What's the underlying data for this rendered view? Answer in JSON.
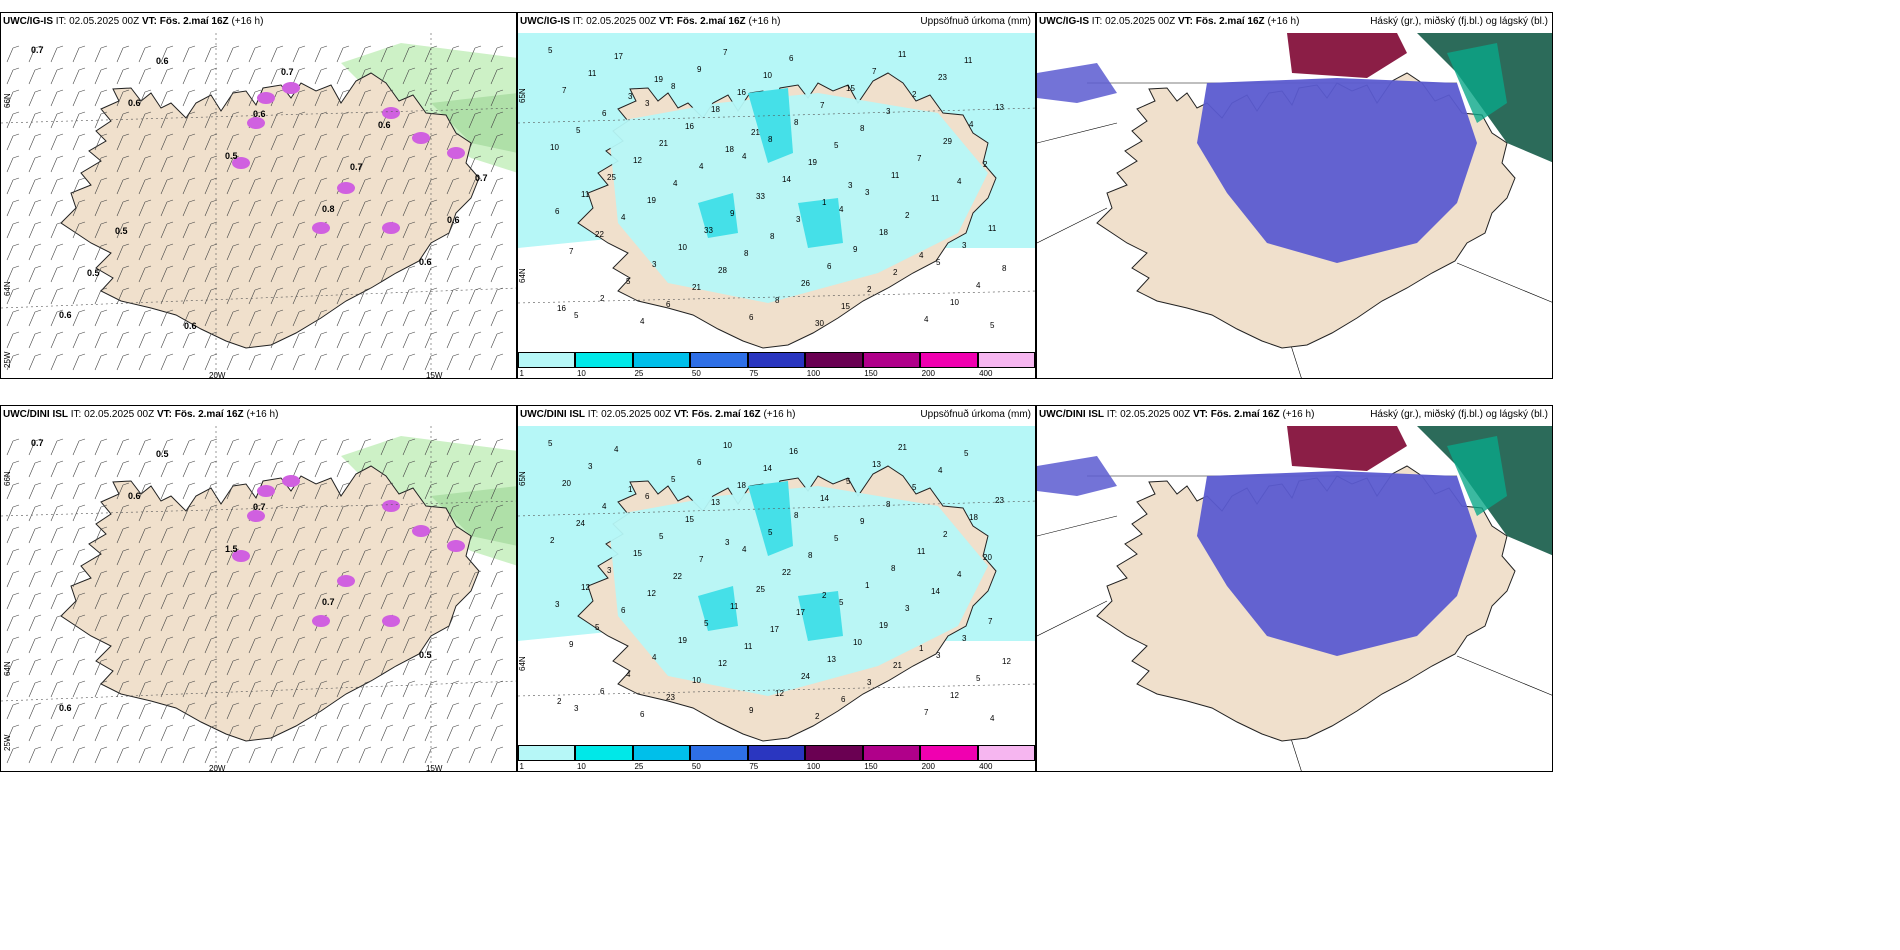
{
  "panels": [
    {
      "id": "p1",
      "model": "UWC/IG-IS",
      "it_label": "IT:",
      "it": "02.05.2025 00Z",
      "vt_label": "VT:",
      "vt": "Fös. 2.maí 16Z",
      "lead": "(+16 h)",
      "right": "",
      "type": "wind",
      "lat_labels": [
        "66N",
        "64N",
        "25W"
      ],
      "lon_labels": [
        "20W",
        "15W"
      ],
      "values": [
        "0.7",
        "0.6",
        "0.5",
        "0.8",
        "0.6",
        "0.6",
        "0.6",
        "0.6",
        "0.7",
        "0.6",
        "0.5",
        "0.6",
        "0.7",
        "0.6",
        "0.7",
        "0.5"
      ]
    },
    {
      "id": "p2",
      "model": "UWC/IG-IS",
      "it_label": "IT:",
      "it": "02.05.2025 00Z",
      "vt_label": "VT:",
      "vt": "Fös. 2.maí 16Z",
      "lead": "(+16 h)",
      "right": "Uppsöfnuð úrkoma (mm)",
      "type": "precip",
      "lat_labels": [
        "65N",
        "64N"
      ],
      "values": [
        "5",
        "3",
        "4",
        "4",
        "5",
        "5",
        "8",
        "8",
        "3",
        "3",
        "2",
        "9",
        "8",
        "11",
        "11",
        "5",
        "7",
        "7",
        "7",
        "6",
        "3",
        "6",
        "15",
        "29",
        "11",
        "10",
        "8",
        "7",
        "4",
        "25",
        "33",
        "26",
        "11",
        "13",
        "12",
        "9",
        "6",
        "4",
        "7",
        "21",
        "33",
        "9",
        "10",
        "11",
        "16",
        "14",
        "18",
        "4",
        "17",
        "18",
        "19",
        "2",
        "8",
        "4",
        "16",
        "5",
        "11",
        "7",
        "6",
        "10",
        "8",
        "4",
        "22",
        "21",
        "6",
        "3",
        "2",
        "4",
        "28",
        "30",
        "2",
        "10",
        "19",
        "8",
        "15",
        "23",
        "5",
        "4",
        "8",
        "2",
        "11",
        "6",
        "4",
        "3",
        "2",
        "5",
        "3",
        "18",
        "1",
        "4",
        "16",
        "19",
        "21",
        "3"
      ]
    },
    {
      "id": "p3",
      "model": "UWC/IG-IS",
      "it_label": "IT:",
      "it": "02.05.2025 00Z",
      "vt_label": "VT:",
      "vt": "Fös. 2.maí 16Z",
      "lead": "(+16 h)",
      "right": "Háský (gr.), miðský (fj.bl.) og lágský (bl.)",
      "type": "cloud"
    },
    {
      "id": "p4",
      "model": "UWC/DINI ISL",
      "it_label": "IT:",
      "it": "02.05.2025 00Z",
      "vt_label": "VT:",
      "vt": "Fös. 2.maí 16Z",
      "lead": "(+16 h)",
      "right": "",
      "type": "wind",
      "lat_labels": [
        "66N",
        "64N",
        "25W"
      ],
      "lon_labels": [
        "20W",
        "15W"
      ],
      "values": [
        "0.7",
        "0.6",
        "1.5",
        "0.7",
        "0.5",
        "0.6",
        "0.5",
        "0.7"
      ]
    },
    {
      "id": "p5",
      "model": "UWC/DINI ISL",
      "it_label": "IT:",
      "it": "02.05.2025 00Z",
      "vt_label": "VT:",
      "vt": "Fös. 2.maí 16Z",
      "lead": "(+16 h)",
      "right": "Uppsöfnuð úrkoma (mm)",
      "type": "precip",
      "lat_labels": [
        "65N",
        "64N"
      ],
      "values": [
        "5",
        "6",
        "4",
        "5",
        "3",
        "3",
        "5",
        "5",
        "1",
        "3",
        "6",
        "6",
        "8",
        "8",
        "7",
        "4",
        "10",
        "14",
        "11",
        "3",
        "4",
        "9",
        "5",
        "2",
        "12",
        "19",
        "12",
        "13",
        "18",
        "3",
        "5",
        "24",
        "21",
        "23",
        "15",
        "11",
        "13",
        "7",
        "20",
        "5",
        "25",
        "10",
        "12",
        "3",
        "15",
        "22",
        "19",
        "5",
        "4",
        "13",
        "8",
        "3",
        "12",
        "6",
        "18",
        "5",
        "14",
        "9",
        "23",
        "14",
        "9",
        "4",
        "5",
        "10",
        "16",
        "8",
        "20",
        "6",
        "12",
        "2",
        "5",
        "2",
        "12",
        "11",
        "6",
        "4",
        "24",
        "22",
        "17",
        "3",
        "5",
        "4",
        "7",
        "17",
        "21",
        "4",
        "1",
        "3",
        "2",
        "1",
        "2"
      ]
    },
    {
      "id": "p6",
      "model": "UWC/DINI ISL",
      "it_label": "IT:",
      "it": "02.05.2025 00Z",
      "vt_label": "VT:",
      "vt": "Fös. 2.maí 16Z",
      "lead": "(+16 h)",
      "right": "Háský (gr.), miðský (fj.bl.) og lágský (bl.)",
      "type": "cloud"
    }
  ],
  "colorbar": {
    "ticks": [
      "1",
      "10",
      "25",
      "50",
      "75",
      "100",
      "150",
      "200",
      "400"
    ],
    "colors": [
      "#b6f7f7",
      "#00e8e8",
      "#00bfea",
      "#2e6fe6",
      "#2a36c0",
      "#6a0052",
      "#b0008a",
      "#f000b0",
      "#f6b6f0"
    ]
  },
  "colors": {
    "land": "#f0e0cc",
    "precip_light": "#b6f7f7",
    "precip_mid": "#45e0e8",
    "high_cloud": "#5b5bd0",
    "mid_cloud": "#8b1e46",
    "low_cloud": "#0aa888",
    "snow_green": "#c8f0c0",
    "purple": "#d060e0"
  }
}
